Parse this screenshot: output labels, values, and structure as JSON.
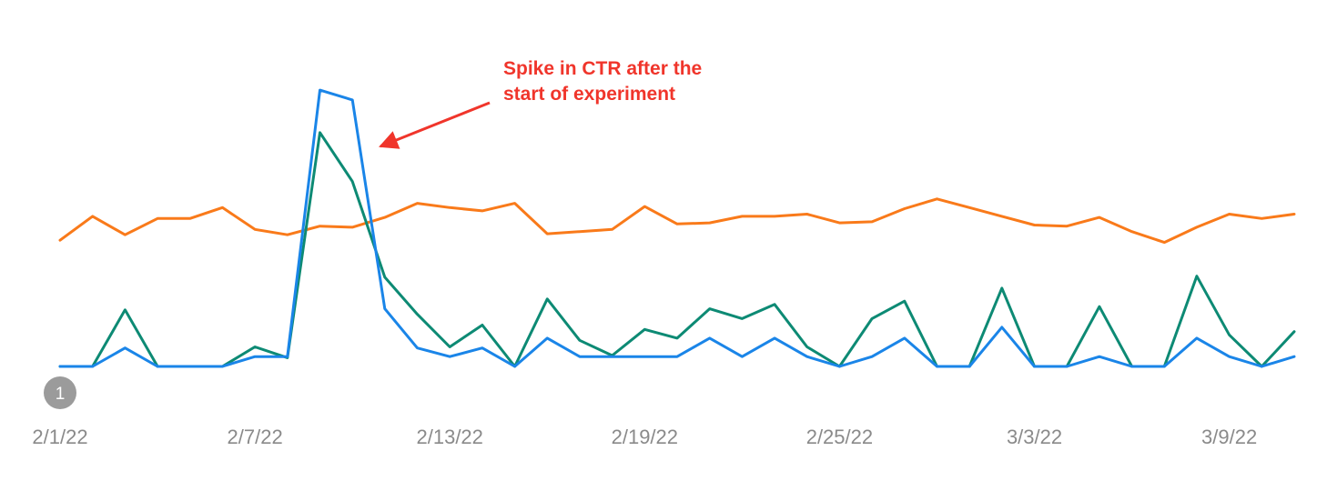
{
  "chart_data": {
    "type": "line",
    "x": [
      "2/1/22",
      "2/2/22",
      "2/3/22",
      "2/4/22",
      "2/5/22",
      "2/6/22",
      "2/7/22",
      "2/8/22",
      "2/9/22",
      "2/10/22",
      "2/11/22",
      "2/12/22",
      "2/13/22",
      "2/14/22",
      "2/15/22",
      "2/16/22",
      "2/17/22",
      "2/18/22",
      "2/19/22",
      "2/20/22",
      "2/21/22",
      "2/22/22",
      "2/23/22",
      "2/24/22",
      "2/25/22",
      "2/26/22",
      "2/27/22",
      "2/28/22",
      "3/1/22",
      "3/2/22",
      "3/3/22",
      "3/4/22",
      "3/5/22",
      "3/6/22",
      "3/7/22",
      "3/8/22",
      "3/9/22",
      "3/10/22",
      "3/11/22"
    ],
    "x_tick_labels": [
      "2/1/22",
      "2/7/22",
      "2/13/22",
      "2/19/22",
      "2/25/22",
      "3/3/22",
      "3/9/22"
    ],
    "series": [
      {
        "color": "#f97a1a",
        "values": [
          116,
          138,
          121,
          136,
          136,
          146,
          126,
          121,
          129,
          128,
          137,
          150,
          146,
          143,
          150,
          122,
          124,
          126,
          147,
          131,
          132,
          138,
          138,
          140,
          132,
          133,
          145,
          154,
          146,
          138,
          130,
          129,
          137,
          124,
          114,
          128,
          140,
          136,
          140
        ]
      },
      {
        "color": "#0d8a74",
        "values": [
          0,
          0,
          52,
          0,
          0,
          0,
          18,
          8,
          215,
          170,
          82,
          48,
          18,
          38,
          0,
          62,
          24,
          10,
          34,
          26,
          53,
          44,
          57,
          18,
          0,
          44,
          60,
          0,
          0,
          72,
          0,
          0,
          55,
          0,
          0,
          83,
          29,
          0,
          32
        ]
      },
      {
        "color": "#1a85e8",
        "values": [
          0,
          0,
          17,
          0,
          0,
          0,
          9,
          9,
          254,
          245,
          53,
          17,
          9,
          17,
          0,
          26,
          9,
          9,
          9,
          9,
          26,
          9,
          26,
          9,
          0,
          9,
          26,
          0,
          0,
          36,
          0,
          0,
          9,
          0,
          0,
          26,
          9,
          0,
          9
        ]
      }
    ],
    "ylim": [
      0,
      270
    ],
    "grid": false,
    "legend": "none",
    "annotations": [
      {
        "text": "Spike in CTR after the\nstart of experiment",
        "color": "#f0352b",
        "points_to_x": "2/11/22"
      }
    ],
    "markers": [
      {
        "label": "1",
        "at_x": "2/1/22",
        "color": "#9b9b9b"
      }
    ]
  }
}
